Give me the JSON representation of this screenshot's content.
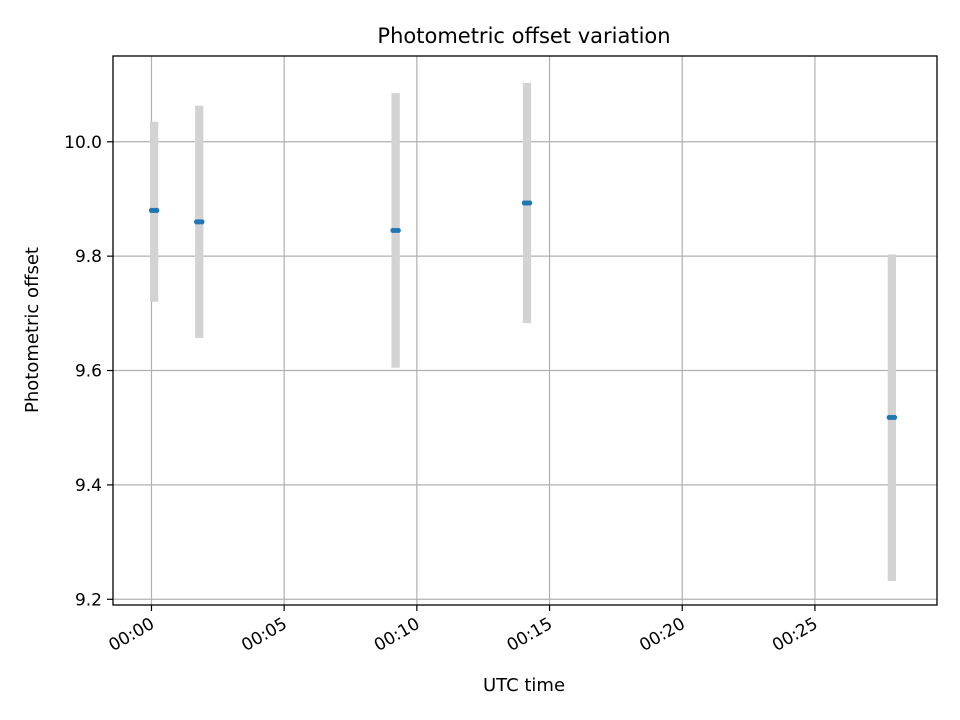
{
  "chart_data": {
    "type": "scatter",
    "title": "Photometric offset variation",
    "xlabel": "UTC time",
    "ylabel": "Photometric offset",
    "x_tick_labels": [
      "00:00",
      "00:05",
      "00:10",
      "00:15",
      "00:20",
      "00:25"
    ],
    "x_tick_minutes": [
      0,
      5,
      10,
      15,
      20,
      25
    ],
    "y_ticks": [
      9.2,
      9.4,
      9.6,
      9.8,
      10.0
    ],
    "y_tick_labels": [
      "9.2",
      "9.4",
      "9.6",
      "9.8",
      "10.0"
    ],
    "xlim_minutes": [
      -1.45,
      29.6
    ],
    "ylim": [
      9.19,
      10.15
    ],
    "grid": true,
    "legend": "none",
    "series": [
      {
        "color": "#1f77b4",
        "errorbar_color": "#d3d3d3",
        "points": [
          {
            "x": "00:00:00",
            "y": 9.88,
            "yerr_low": 9.72,
            "yerr_high": 10.035
          },
          {
            "x": "00:00:06",
            "y": 9.88,
            "yerr_low": 9.72,
            "yerr_high": 10.035
          },
          {
            "x": "00:00:12",
            "y": 9.88,
            "yerr_low": 9.72,
            "yerr_high": 10.035
          },
          {
            "x": "00:01:42",
            "y": 9.86,
            "yerr_low": 9.657,
            "yerr_high": 10.063
          },
          {
            "x": "00:01:48",
            "y": 9.86,
            "yerr_low": 9.657,
            "yerr_high": 10.063
          },
          {
            "x": "00:01:54",
            "y": 9.86,
            "yerr_low": 9.657,
            "yerr_high": 10.063
          },
          {
            "x": "00:09:06",
            "y": 9.845,
            "yerr_low": 9.605,
            "yerr_high": 10.085
          },
          {
            "x": "00:09:12",
            "y": 9.845,
            "yerr_low": 9.605,
            "yerr_high": 10.085
          },
          {
            "x": "00:09:18",
            "y": 9.845,
            "yerr_low": 9.605,
            "yerr_high": 10.085
          },
          {
            "x": "00:14:03",
            "y": 9.893,
            "yerr_low": 9.683,
            "yerr_high": 10.103
          },
          {
            "x": "00:14:09",
            "y": 9.893,
            "yerr_low": 9.683,
            "yerr_high": 10.103
          },
          {
            "x": "00:14:15",
            "y": 9.893,
            "yerr_low": 9.683,
            "yerr_high": 10.103
          },
          {
            "x": "00:27:48",
            "y": 9.518,
            "yerr_low": 9.232,
            "yerr_high": 9.803
          },
          {
            "x": "00:27:54",
            "y": 9.518,
            "yerr_low": 9.232,
            "yerr_high": 9.803
          },
          {
            "x": "00:28:00",
            "y": 9.518,
            "yerr_low": 9.232,
            "yerr_high": 9.803
          }
        ]
      }
    ]
  }
}
